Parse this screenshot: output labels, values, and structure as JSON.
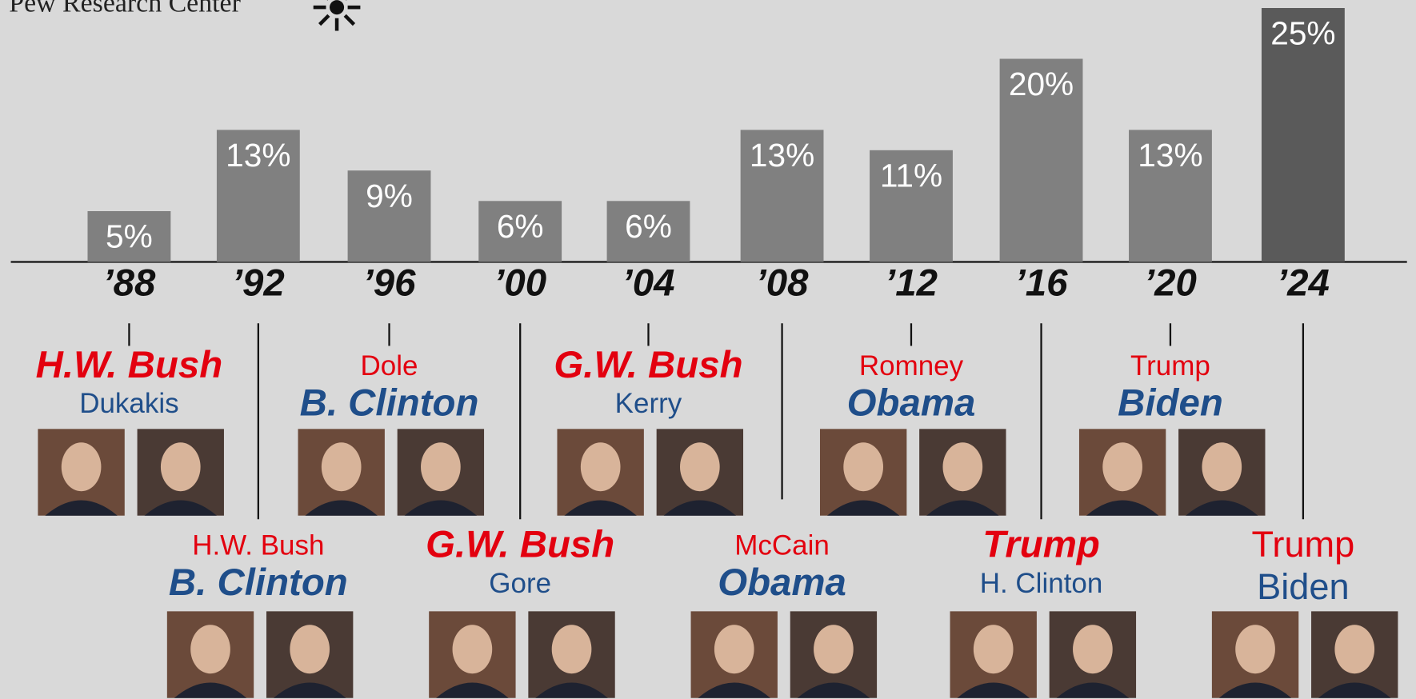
{
  "chart_data": {
    "type": "bar",
    "source": "Pew Research Center",
    "categories": [
      "’88",
      "’92",
      "’96",
      "’00",
      "’04",
      "’08",
      "’12",
      "’16",
      "’20",
      "’24"
    ],
    "values": [
      5,
      13,
      9,
      6,
      6,
      13,
      11,
      20,
      13,
      25
    ],
    "value_labels": [
      "5%",
      "13%",
      "9%",
      "6%",
      "6%",
      "13%",
      "11%",
      "20%",
      "13%",
      "25%"
    ],
    "colors": [
      "#808080",
      "#808080",
      "#808080",
      "#808080",
      "#808080",
      "#808080",
      "#808080",
      "#808080",
      "#808080",
      "#5a5a5a"
    ],
    "candidates": [
      [
        {
          "name": "H.W. Bush",
          "color": "#e3000f",
          "bold": true
        },
        {
          "name": "Dukakis",
          "color": "#1f4e8a",
          "bold": false
        }
      ],
      [
        {
          "name": "H.W. Bush",
          "color": "#e3000f",
          "bold": false
        },
        {
          "name": "B. Clinton",
          "color": "#1f4e8a",
          "bold": true
        }
      ],
      [
        {
          "name": "Dole",
          "color": "#e3000f",
          "bold": false
        },
        {
          "name": "B. Clinton",
          "color": "#1f4e8a",
          "bold": true
        }
      ],
      [
        {
          "name": "G.W. Bush",
          "color": "#e3000f",
          "bold": true
        },
        {
          "name": "Gore",
          "color": "#1f4e8a",
          "bold": false
        }
      ],
      [
        {
          "name": "G.W. Bush",
          "color": "#e3000f",
          "bold": true
        },
        {
          "name": "Kerry",
          "color": "#1f4e8a",
          "bold": false
        }
      ],
      [
        {
          "name": "McCain",
          "color": "#e3000f",
          "bold": false
        },
        {
          "name": "Obama",
          "color": "#1f4e8a",
          "bold": true
        }
      ],
      [
        {
          "name": "Romney",
          "color": "#e3000f",
          "bold": false
        },
        {
          "name": "Obama",
          "color": "#1f4e8a",
          "bold": true
        }
      ],
      [
        {
          "name": "Trump",
          "color": "#e3000f",
          "bold": true
        },
        {
          "name": "H. Clinton",
          "color": "#1f4e8a",
          "bold": false
        }
      ],
      [
        {
          "name": "Trump",
          "color": "#e3000f",
          "bold": false
        },
        {
          "name": "Biden",
          "color": "#1f4e8a",
          "bold": true
        }
      ],
      [
        {
          "name": "Trump",
          "color": "#e3000f",
          "bold": false
        },
        {
          "name": "Biden",
          "color": "#1f4e8a",
          "bold": false
        }
      ]
    ]
  }
}
